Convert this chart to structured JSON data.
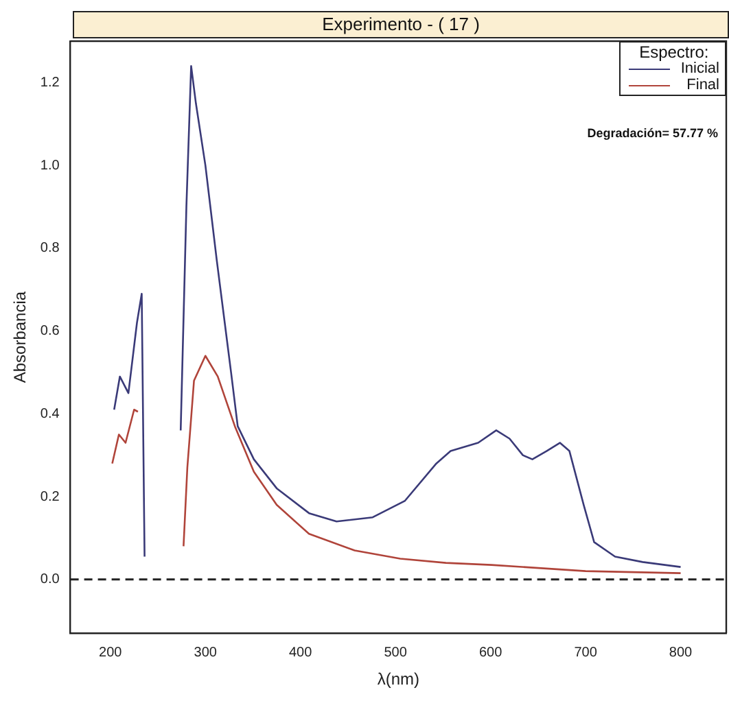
{
  "chart_data": {
    "type": "line",
    "title": "Experimento - ( 17 )",
    "xlabel": "λ(nm)",
    "ylabel": "Absorbancia",
    "legend_title": "Espectro:",
    "legend": "top right",
    "grid": false,
    "marker": "none",
    "line_style": "solid",
    "xlim": [
      158,
      848
    ],
    "ylim": [
      -0.13,
      1.3
    ],
    "xticks": [
      200,
      300,
      400,
      500,
      600,
      700,
      800
    ],
    "yticks": [
      {
        "value": 0,
        "label": "0.0"
      },
      {
        "value": 0.2,
        "label": "0.2"
      },
      {
        "value": 0.4,
        "label": "0.4"
      },
      {
        "value": 0.6,
        "label": "0.6"
      },
      {
        "value": 0.8,
        "label": "0.8"
      },
      {
        "value": 1,
        "label": "1.0"
      },
      {
        "value": 1.2,
        "label": "1.2"
      }
    ],
    "series": [
      {
        "name": "Inicial",
        "color": "#3a3a78",
        "x": [
          204,
          210,
          219,
          228,
          233,
          236,
          255,
          274,
          280,
          285,
          290,
          300,
          312,
          327,
          334,
          351,
          375,
          409,
          438,
          476,
          510,
          543,
          558,
          587,
          606,
          620,
          634,
          644,
          659,
          673,
          683,
          698,
          709,
          731,
          760,
          800
        ],
        "values": [
          0.41,
          0.49,
          0.45,
          0.62,
          0.69,
          0.055,
          null,
          0.36,
          0.9,
          1.24,
          1.15,
          1.0,
          0.77,
          0.5,
          0.37,
          0.29,
          0.22,
          0.16,
          0.14,
          0.15,
          0.19,
          0.28,
          0.31,
          0.33,
          0.36,
          0.34,
          0.3,
          0.29,
          0.31,
          0.33,
          0.31,
          0.18,
          0.09,
          0.055,
          0.042,
          0.03
        ]
      },
      {
        "name": "Final",
        "color": "#b0443a",
        "x": [
          202,
          209,
          216,
          225,
          229,
          255,
          277,
          281,
          288,
          300,
          313,
          331,
          351,
          375,
          409,
          457,
          505,
          553,
          601,
          700,
          800
        ],
        "values": [
          0.28,
          0.35,
          0.33,
          0.41,
          0.405,
          null,
          0.08,
          0.27,
          0.48,
          0.54,
          0.49,
          0.37,
          0.26,
          0.18,
          0.11,
          0.07,
          0.05,
          0.04,
          0.035,
          0.02,
          0.015
        ]
      }
    ],
    "ref_lines": [
      {
        "axis": "y",
        "value": 0,
        "line_style": "dashed",
        "color": "#222222"
      }
    ],
    "annotations": [
      "Degradación= 57.77 %"
    ]
  }
}
